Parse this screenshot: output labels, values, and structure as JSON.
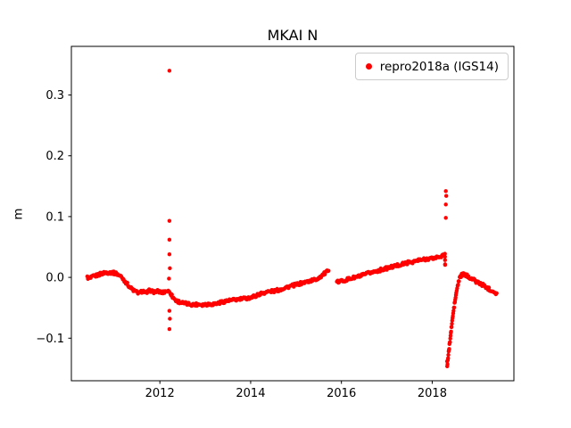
{
  "chart_data": {
    "type": "scatter",
    "title": "MKAI N",
    "xlabel": "",
    "ylabel": "m",
    "xlim": [
      2010.05,
      2019.8
    ],
    "ylim": [
      -0.17,
      0.38
    ],
    "xticks": [
      2012,
      2014,
      2016,
      2018
    ],
    "yticks": [
      -0.1,
      0.0,
      0.1,
      0.2,
      0.3
    ],
    "grid": false,
    "legend_position": "upper right",
    "marker": {
      "color": "#ff0000",
      "size": 2.2
    },
    "axis_color": "#000000",
    "legend_border_color": "#cccccc",
    "series": [
      {
        "name": "repro2018a (IGS14)",
        "color": "#ff0000",
        "trend_anchors": [
          [
            2010.4,
            0.0
          ],
          [
            2010.46,
            -0.002
          ],
          [
            2010.52,
            0.001
          ],
          [
            2010.6,
            0.003
          ],
          [
            2010.7,
            0.006
          ],
          [
            2010.8,
            0.008
          ],
          [
            2010.95,
            0.008
          ],
          [
            2011.05,
            0.006
          ],
          [
            2011.15,
            0.001
          ],
          [
            2011.25,
            -0.008
          ],
          [
            2011.35,
            -0.017
          ],
          [
            2011.45,
            -0.023
          ],
          [
            2011.55,
            -0.026
          ],
          [
            2011.62,
            -0.022
          ],
          [
            2011.7,
            -0.026
          ],
          [
            2011.78,
            -0.021
          ],
          [
            2011.85,
            -0.024
          ],
          [
            2011.95,
            -0.023
          ],
          [
            2012.05,
            -0.025
          ],
          [
            2012.15,
            -0.022
          ],
          [
            2012.22,
            -0.024
          ],
          [
            2012.28,
            -0.032
          ],
          [
            2012.35,
            -0.038
          ],
          [
            2012.45,
            -0.041
          ],
          [
            2012.55,
            -0.043
          ],
          [
            2012.65,
            -0.044
          ],
          [
            2012.75,
            -0.045
          ],
          [
            2012.85,
            -0.044
          ],
          [
            2012.95,
            -0.045
          ],
          [
            2013.05,
            -0.044
          ],
          [
            2013.15,
            -0.044
          ],
          [
            2013.25,
            -0.043
          ],
          [
            2013.35,
            -0.041
          ],
          [
            2013.45,
            -0.039
          ],
          [
            2013.55,
            -0.038
          ],
          [
            2013.65,
            -0.037
          ],
          [
            2013.75,
            -0.036
          ],
          [
            2013.85,
            -0.035
          ],
          [
            2013.95,
            -0.034
          ],
          [
            2014.05,
            -0.032
          ],
          [
            2014.15,
            -0.029
          ],
          [
            2014.25,
            -0.026
          ],
          [
            2014.35,
            -0.024
          ],
          [
            2014.45,
            -0.023
          ],
          [
            2014.55,
            -0.022
          ],
          [
            2014.65,
            -0.02
          ],
          [
            2014.75,
            -0.017
          ],
          [
            2014.85,
            -0.015
          ],
          [
            2014.95,
            -0.013
          ],
          [
            2015.05,
            -0.011
          ],
          [
            2015.15,
            -0.009
          ],
          [
            2015.25,
            -0.007
          ],
          [
            2015.35,
            -0.005
          ],
          [
            2015.45,
            -0.003
          ],
          [
            2015.55,
            0.002
          ],
          [
            2015.62,
            0.006
          ],
          [
            2015.7,
            0.01
          ],
          [
            2015.9,
            -0.008
          ],
          [
            2016.0,
            -0.006
          ],
          [
            2016.1,
            -0.004
          ],
          [
            2016.2,
            -0.002
          ],
          [
            2016.3,
            0.0
          ],
          [
            2016.4,
            0.002
          ],
          [
            2016.5,
            0.004
          ],
          [
            2016.6,
            0.007
          ],
          [
            2016.7,
            0.009
          ],
          [
            2016.8,
            0.011
          ],
          [
            2016.9,
            0.013
          ],
          [
            2017.0,
            0.015
          ],
          [
            2017.1,
            0.017
          ],
          [
            2017.2,
            0.019
          ],
          [
            2017.3,
            0.021
          ],
          [
            2017.4,
            0.023
          ],
          [
            2017.5,
            0.025
          ],
          [
            2017.6,
            0.026
          ],
          [
            2017.7,
            0.028
          ],
          [
            2017.8,
            0.029
          ],
          [
            2017.9,
            0.031
          ],
          [
            2018.0,
            0.031
          ],
          [
            2018.1,
            0.033
          ],
          [
            2018.2,
            0.035
          ],
          [
            2018.28,
            0.037
          ],
          [
            2018.33,
            -0.145
          ],
          [
            2018.35,
            -0.132
          ],
          [
            2018.38,
            -0.112
          ],
          [
            2018.41,
            -0.092
          ],
          [
            2018.44,
            -0.072
          ],
          [
            2018.47,
            -0.055
          ],
          [
            2018.5,
            -0.04
          ],
          [
            2018.53,
            -0.026
          ],
          [
            2018.56,
            -0.014
          ],
          [
            2018.59,
            -0.005
          ],
          [
            2018.62,
            0.001
          ],
          [
            2018.65,
            0.004
          ],
          [
            2018.68,
            0.005
          ],
          [
            2018.72,
            0.004
          ],
          [
            2018.78,
            0.002
          ],
          [
            2018.85,
            -0.001
          ],
          [
            2018.95,
            -0.006
          ],
          [
            2019.05,
            -0.01
          ],
          [
            2019.15,
            -0.014
          ],
          [
            2019.25,
            -0.019
          ],
          [
            2019.35,
            -0.023
          ],
          [
            2019.42,
            -0.026
          ]
        ],
        "outliers": [
          [
            2012.21,
            0.34
          ],
          [
            2012.21,
            0.093
          ],
          [
            2012.21,
            0.062
          ],
          [
            2012.21,
            0.038
          ],
          [
            2012.22,
            0.015
          ],
          [
            2012.2,
            -0.002
          ],
          [
            2012.21,
            -0.055
          ],
          [
            2012.22,
            -0.068
          ],
          [
            2012.21,
            -0.085
          ],
          [
            2018.3,
            0.142
          ],
          [
            2018.31,
            0.134
          ],
          [
            2018.3,
            0.12
          ],
          [
            2018.3,
            0.098
          ]
        ],
        "gaps": [
          [
            2015.72,
            2015.89
          ],
          [
            2018.285,
            2018.328
          ]
        ]
      }
    ]
  }
}
